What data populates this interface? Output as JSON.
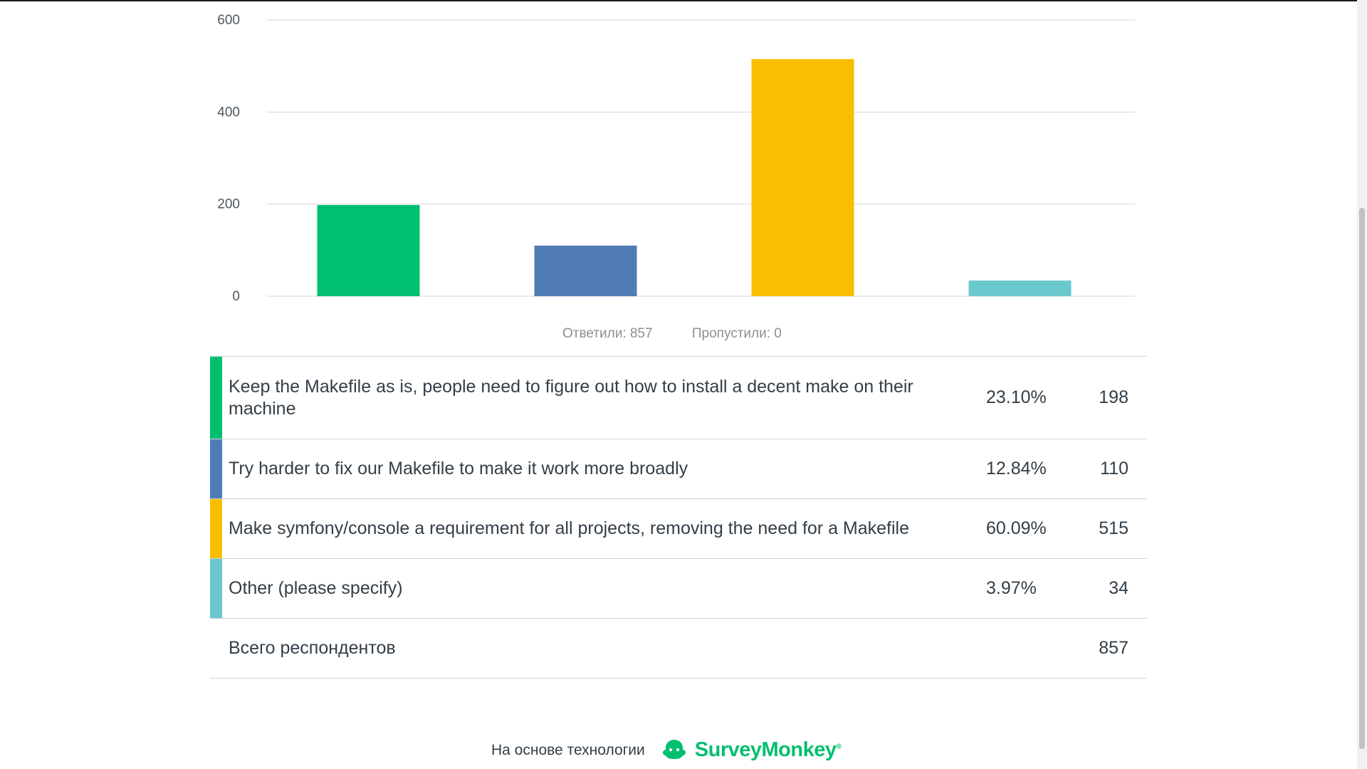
{
  "chart_data": {
    "type": "bar",
    "categories": [
      "Keep the Makefile as is, people need to figure out how to install a decent make on their machine",
      "Try harder to fix our Makefile to make it work more broadly",
      "Make symfony/console a requirement for all projects, removing the need for a Makefile",
      "Other (please specify)"
    ],
    "values": [
      198,
      110,
      515,
      34
    ],
    "colors": [
      "#00bf6f",
      "#507cb6",
      "#f9be00",
      "#6bc8cd"
    ],
    "yticks": [
      "0",
      "200",
      "400",
      "600"
    ],
    "ylim": [
      0,
      600
    ],
    "grid": true
  },
  "stats": {
    "answered": "Ответили: 857",
    "skipped": "Пропустили: 0"
  },
  "rows": [
    {
      "label": "Keep the Makefile as is, people need to figure out how to install a decent make on their machine",
      "percent": "23.10%",
      "count": "198",
      "color": "#00bf6f"
    },
    {
      "label": "Try harder to fix our Makefile to make it work more broadly",
      "percent": "12.84%",
      "count": "110",
      "color": "#507cb6"
    },
    {
      "label": "Make symfony/console a requirement for all projects, removing the need for a Makefile",
      "percent": "60.09%",
      "count": "515",
      "color": "#f9be00"
    },
    {
      "label": "Other (please specify)",
      "percent": "3.97%",
      "count": "34",
      "color": "#6bc8cd"
    }
  ],
  "total": {
    "label": "Всего респондентов",
    "count": "857"
  },
  "footer": {
    "powered_by": "На основе технологии",
    "brand": "SurveyMonkey",
    "logo_icon": "surveymonkey-logo-icon"
  }
}
